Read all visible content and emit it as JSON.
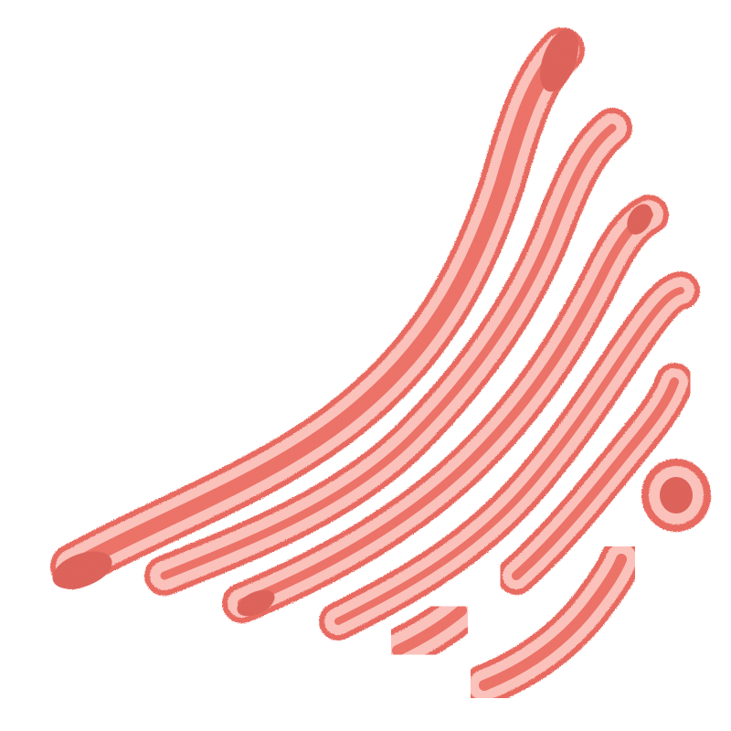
{
  "image": {
    "subject": "",
    "colors": {
      "background": "#ffffff",
      "membrane_edge": "#e86a60",
      "membrane_light": "#fbc2bb",
      "lumen": "#ec6a5f",
      "lumen_dark": "#d9544b"
    }
  }
}
